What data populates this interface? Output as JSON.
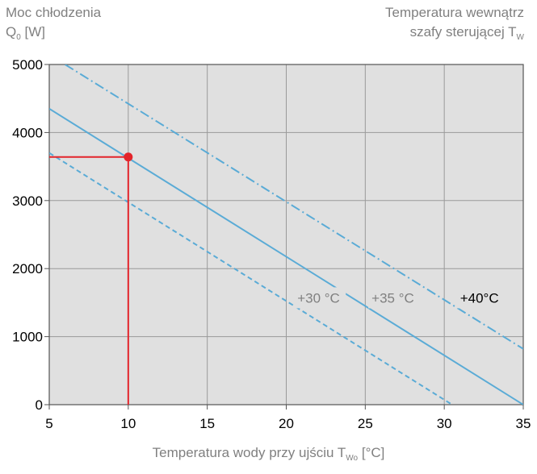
{
  "chart_data": {
    "type": "line",
    "ylabel_line1": "Moc chłodzenia",
    "ylabel_line2": "Q",
    "ylabel_sub": "0",
    "ylabel_unit": " [W]",
    "legend_title_line1": "Temperatura wewnątrz",
    "legend_title_line2": "szafy sterującej T",
    "legend_title_sub": "W",
    "xlabel": "Temperatura wody przy ujściu T",
    "xlabel_sub": "Wo",
    "xlabel_unit": " [°C]",
    "xlim": [
      5,
      35
    ],
    "ylim": [
      0,
      5000
    ],
    "xticks": [
      5,
      10,
      15,
      20,
      25,
      30,
      35
    ],
    "yticks": [
      0,
      1000,
      2000,
      3000,
      4000,
      5000
    ],
    "grid": true,
    "background": "#e0e0e0",
    "series": [
      {
        "name": "+30 °C",
        "x": [
          5,
          30.5
        ],
        "y": [
          3700,
          0
        ],
        "style": "dashed",
        "color": "#5aabd6",
        "label_color": "#808080"
      },
      {
        "name": "+35 °C",
        "x": [
          5,
          35
        ],
        "y": [
          4350,
          0
        ],
        "style": "solid",
        "color": "#5aabd6",
        "label_color": "#808080"
      },
      {
        "name": "+40°C",
        "x": [
          6,
          35
        ],
        "y": [
          5000,
          820
        ],
        "style": "dashdot",
        "color": "#5aabd6",
        "label_color": "#000000"
      }
    ],
    "marker": {
      "x": 10,
      "y": 3640,
      "color": "#e3242b"
    }
  }
}
